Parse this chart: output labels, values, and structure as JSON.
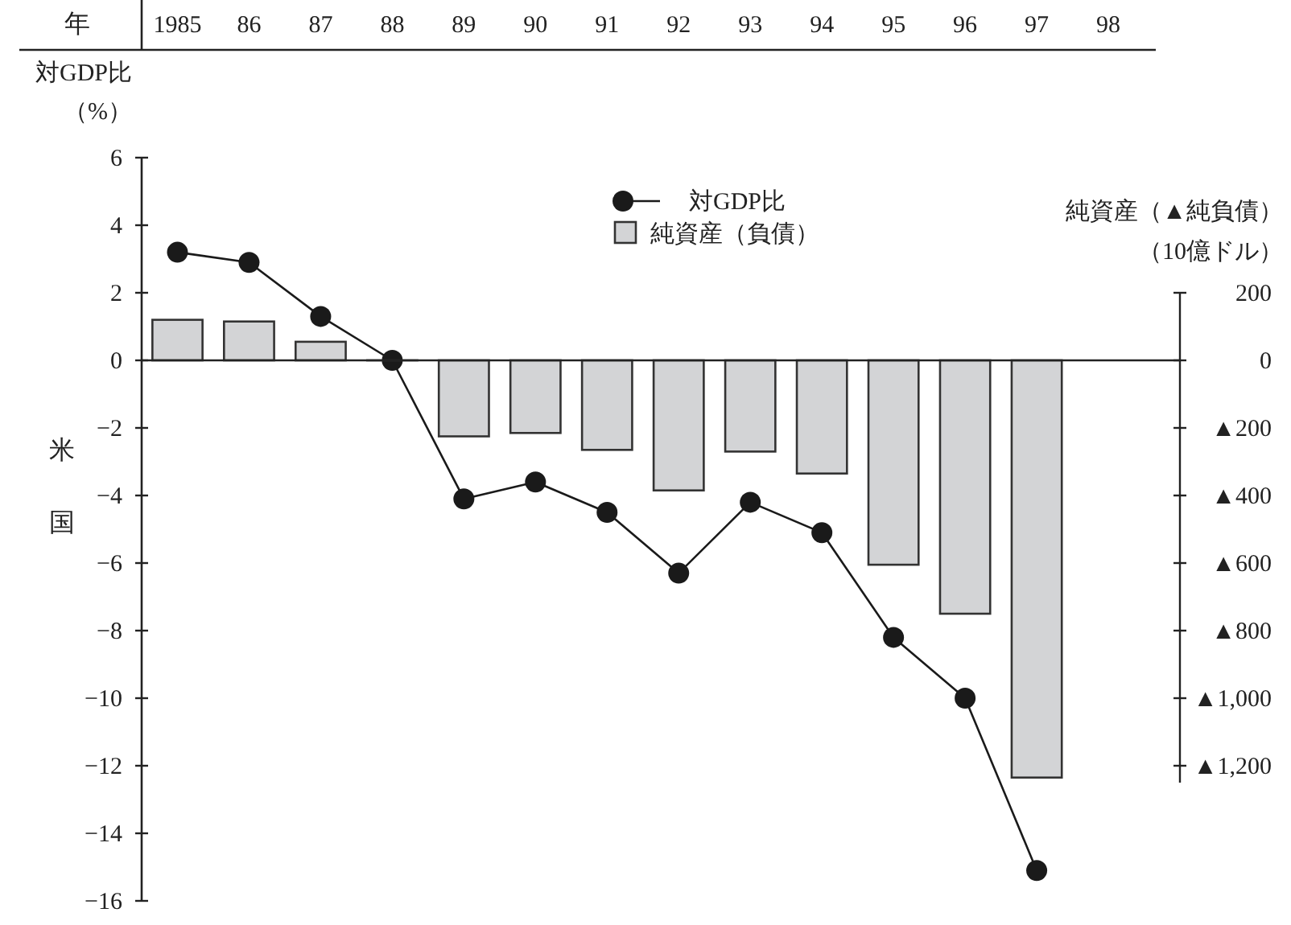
{
  "chart_data": {
    "type": "line",
    "xlabel": "年",
    "ylabel": "対GDP比（%）",
    "y2label": "純資産（▲純負債）（10億ドル）",
    "ref_lines": [
      {
        "axis": "y",
        "value": 0
      }
    ],
    "annotations": [
      "米国"
    ],
    "categories": [
      "1985",
      "86",
      "87",
      "88",
      "89",
      "90",
      "91",
      "92",
      "93",
      "94",
      "95",
      "96",
      "97",
      "98"
    ],
    "series": [
      {
        "name": "対GDP比",
        "color": "#1a1a1a",
        "marker": "circle",
        "values": [
          3.2,
          2.9,
          1.3,
          0,
          -4.1,
          -3.6,
          -4.5,
          -6.3,
          -4.2,
          -5.1,
          -8.2,
          -10.0,
          -15.1,
          null
        ]
      },
      {
        "name": "純資産（負債）",
        "type": "bar",
        "axis": "y2",
        "color": "#d3d4d6",
        "values": [
          120,
          115,
          55,
          0,
          -225,
          -215,
          -265,
          -385,
          -270,
          -335,
          -605,
          -750,
          -1235,
          null
        ]
      }
    ],
    "ylim": [
      -16,
      6
    ],
    "yticks": [
      6,
      4,
      2,
      0,
      {
        "value": -2,
        "label": "−2"
      },
      {
        "value": -4,
        "label": "−4"
      },
      {
        "value": -6,
        "label": "−6"
      },
      {
        "value": -8,
        "label": "−8"
      },
      {
        "value": -10,
        "label": "−10"
      },
      {
        "value": -12,
        "label": "−12"
      },
      {
        "value": -14,
        "label": "−14"
      },
      {
        "value": -16,
        "label": "−16"
      }
    ],
    "y2lim": [
      -1250,
      200
    ],
    "y2ticks": [
      200,
      0,
      {
        "value": -200,
        "label": "▲200"
      },
      {
        "value": -400,
        "label": "▲400"
      },
      {
        "value": -600,
        "label": "▲600"
      },
      {
        "value": -800,
        "label": "▲800"
      },
      {
        "value": -1000,
        "label": "▲1,000"
      },
      {
        "value": -1200,
        "label": "▲1,200"
      }
    ],
    "legend": "top",
    "grid": false,
    "line_style": "solid"
  }
}
